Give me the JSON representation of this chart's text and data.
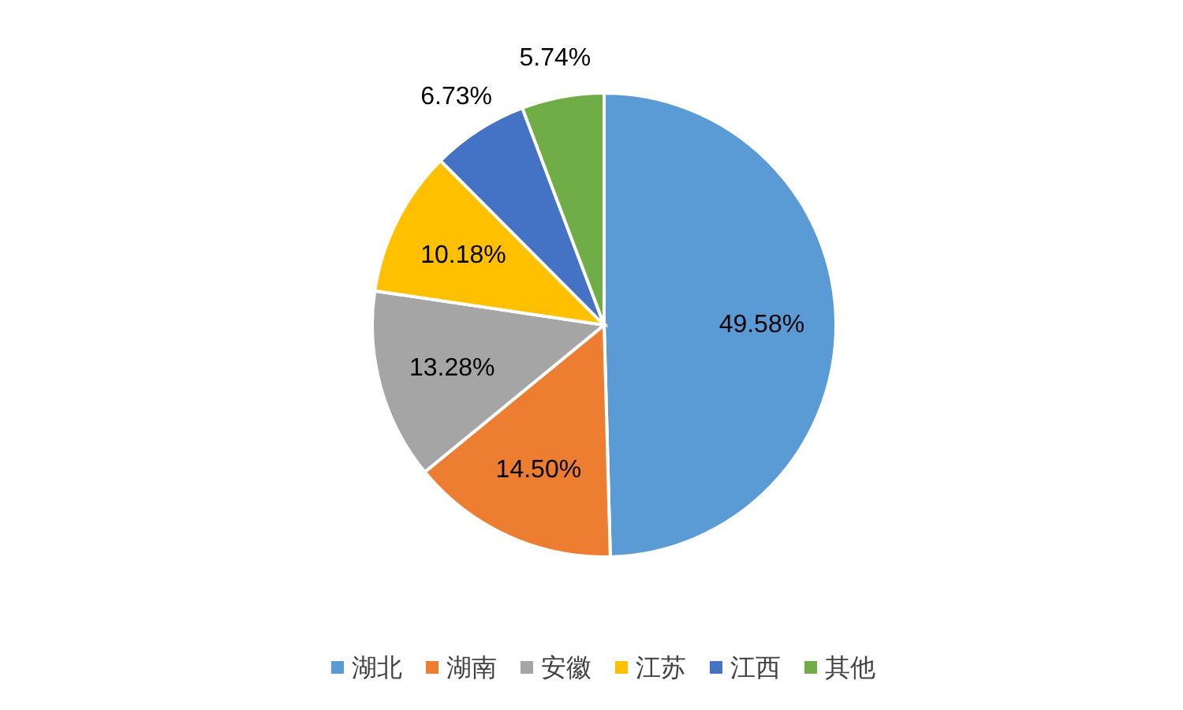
{
  "chart_data": {
    "type": "pie",
    "categories": [
      "湖北",
      "湖南",
      "安徽",
      "江苏",
      "江西",
      "其他"
    ],
    "values": [
      49.58,
      14.5,
      13.28,
      10.18,
      6.73,
      5.74
    ],
    "value_labels": [
      "49.58%",
      "14.50%",
      "13.28%",
      "10.18%",
      "6.73%",
      "5.74%"
    ],
    "colors": [
      "#5b9bd5",
      "#ed7d31",
      "#a5a5a5",
      "#ffc000",
      "#4472c4",
      "#70ad47"
    ],
    "legend": "bottom"
  }
}
